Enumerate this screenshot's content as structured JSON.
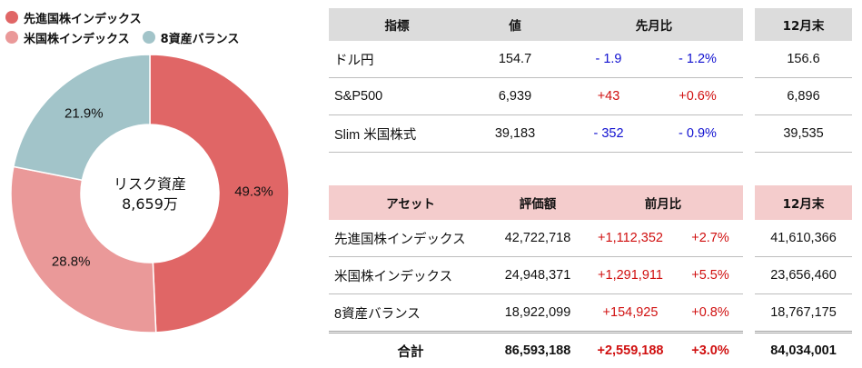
{
  "legend": [
    {
      "label": "先進国株インデックス",
      "color": "#e06666"
    },
    {
      "label": "米国株インデックス",
      "color": "#ea9999"
    },
    {
      "label": "8資産バランス",
      "color": "#a2c4c9"
    }
  ],
  "chart_data": {
    "type": "pie",
    "categories": [
      "先進国株インデックス",
      "米国株インデックス",
      "8資産バランス"
    ],
    "values": [
      49.3,
      28.8,
      21.9
    ],
    "labels": [
      "49.3%",
      "28.8%",
      "21.9%"
    ],
    "colors": [
      "#e06666",
      "#ea9999",
      "#a2c4c9"
    ],
    "center_title": "リスク資産",
    "center_value": "8,659万"
  },
  "market": {
    "headers": [
      "指標",
      "値",
      "先月比",
      "12月末"
    ],
    "rows": [
      {
        "name": "ドル円",
        "value": "154.7",
        "diff": "- 1.9",
        "pct": "- 1.2%",
        "dec": "156.6",
        "sign": "neg"
      },
      {
        "name": "S&P500",
        "value": "6,939",
        "diff": "+43",
        "pct": "+0.6%",
        "dec": "6,896",
        "sign": "pos"
      },
      {
        "name": "Slim 米国株式",
        "value": "39,183",
        "diff": "- 352",
        "pct": "- 0.9%",
        "dec": "39,535",
        "sign": "neg"
      }
    ]
  },
  "assets": {
    "headers": [
      "アセット",
      "評価額",
      "前月比",
      "12月末"
    ],
    "rows": [
      {
        "name": "先進国株インデックス",
        "value": "42,722,718",
        "diff": "+1,112,352",
        "pct": "+2.7%",
        "dec": "41,610,366"
      },
      {
        "name": "米国株インデックス",
        "value": "24,948,371",
        "diff": "+1,291,911",
        "pct": "+5.5%",
        "dec": "23,656,460"
      },
      {
        "name": "8資産バランス",
        "value": "18,922,099",
        "diff": "+154,925",
        "pct": "+0.8%",
        "dec": "18,767,175"
      }
    ],
    "total": {
      "name": "合計",
      "value": "86,593,188",
      "diff": "+2,559,188",
      "pct": "+3.0%",
      "dec": "84,034,001"
    }
  }
}
